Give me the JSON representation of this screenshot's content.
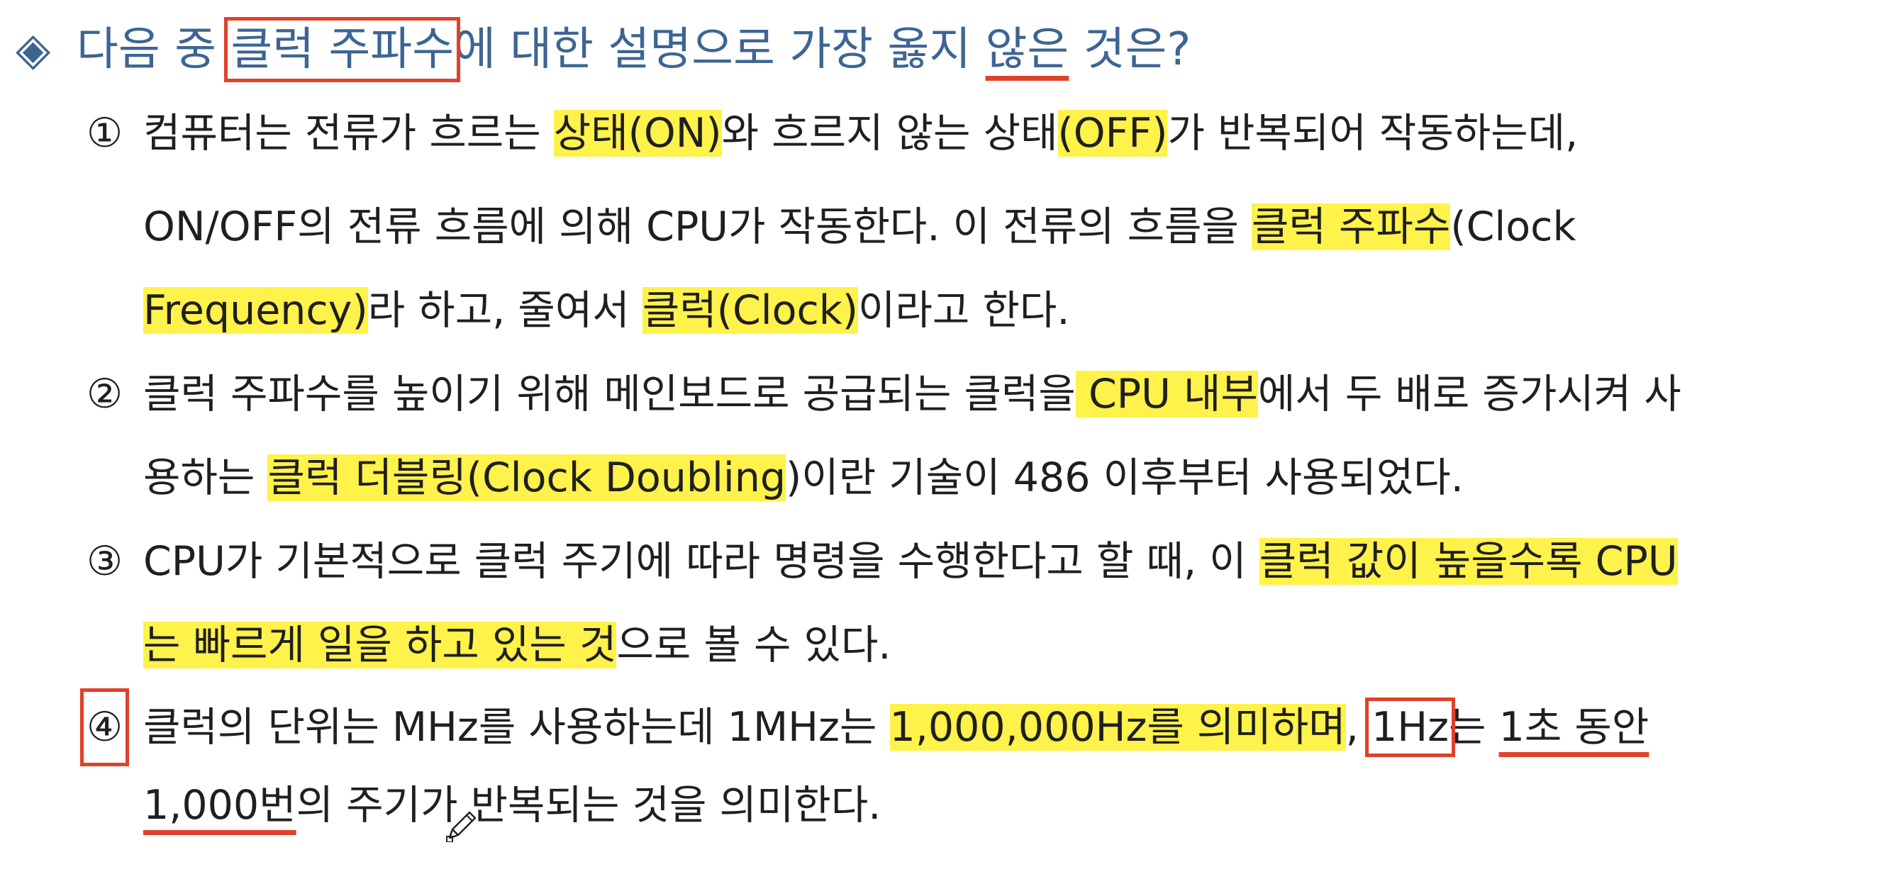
{
  "question": {
    "marker": "◈",
    "before": "다음 중 ",
    "boxed": "클럭 주파수",
    "middle": "에 대한 설명으로 가장 옳지 ",
    "underlined": "않은",
    "after": " 것은?"
  },
  "options": [
    {
      "number": "①",
      "lines": [
        [
          {
            "t": "컴퓨터는 전류가 흐르는 "
          },
          {
            "t": "상태(ON)",
            "hl": true
          },
          {
            "t": "와 흐르지 않는 상태"
          },
          {
            "t": "(OFF)",
            "hl": true
          },
          {
            "t": "가 반복되어 작동하는데,"
          }
        ],
        [
          {
            "t": "ON/OFF의 전류 흐름에 의해 CPU가 작동한다. 이 전류의 흐름을 "
          },
          {
            "t": "클럭 주파수",
            "hl": true
          },
          {
            "t": "(Clock"
          }
        ],
        [
          {
            "t": "Frequency)",
            "hl": true
          },
          {
            "t": "라 하고, 줄여서 "
          },
          {
            "t": "클럭(Clock)",
            "hl": true
          },
          {
            "t": "이라고 한다."
          }
        ]
      ]
    },
    {
      "number": "②",
      "lines": [
        [
          {
            "t": "클럭 주파수를 높이기 위해 메인보드로 공급되는 클럭을"
          },
          {
            "t": " CPU 내부",
            "hl": true
          },
          {
            "t": "에서 두 배로 증가시켜 사"
          }
        ],
        [
          {
            "t": "용하는 "
          },
          {
            "t": "클럭 더블링(Clock Doubling",
            "hl": true
          },
          {
            "t": ")이란 기술이 486 이후부터 사용되었다."
          }
        ]
      ]
    },
    {
      "number": "③",
      "lines": [
        [
          {
            "t": "CPU가 기본적으로 클럭 주기에 따라 명령을 수행한다고 할 때, 이 "
          },
          {
            "t": "클럭 값이 높을수록 CPU",
            "hl": true
          }
        ],
        [
          {
            "t": "는 빠르게 일을 하고 있는 것",
            "hl": true
          },
          {
            "t": "으로 볼 수 있다."
          }
        ]
      ]
    },
    {
      "number": "④",
      "number_boxed": true,
      "lines": [
        [
          {
            "t": "클럭의 단위는 MHz를 사용하는데 1MHz는 "
          },
          {
            "t": "1,000,000Hz를 의미하며",
            "hl": true
          },
          {
            "t": ", "
          },
          {
            "t": "1Hz",
            "box": true
          },
          {
            "t": "는 "
          },
          {
            "t": "1초 동안",
            "ul": true
          }
        ],
        [
          {
            "t": "1,000번",
            "ul": true
          },
          {
            "t": "의 주기가 반복되는 것을 의미한다."
          }
        ]
      ]
    }
  ],
  "colors": {
    "title": "#3d6593",
    "highlight": "#fff24a",
    "annotation_red": "#e0412a",
    "text": "#1f1f1f"
  },
  "icons": {
    "cursor": "pencil-cursor-icon"
  }
}
